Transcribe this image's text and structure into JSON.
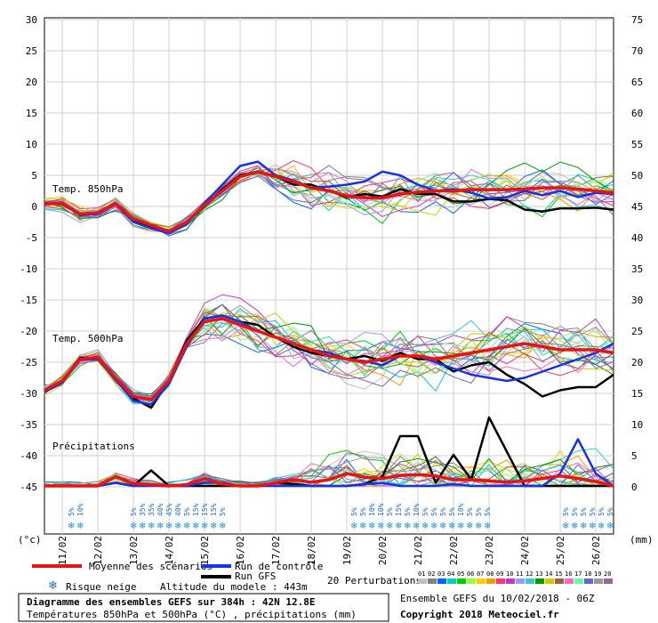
{
  "chart_data": {
    "type": "line",
    "title_line1": "Diagramme des ensembles GEFS sur 384h : 42N 12.8E",
    "title_line2": "Températures 850hPa et 500hPa (°C) , précipitations (mm)",
    "left_unit": "(°c)",
    "right_unit": "(mm)",
    "left_ticks": [
      30,
      25,
      20,
      15,
      10,
      5,
      0,
      -5,
      -10,
      -15,
      -20,
      -25,
      -30,
      -35,
      -40,
      -45
    ],
    "left_tick_values": [
      30,
      25,
      20,
      15,
      10,
      5,
      0,
      -5,
      -10,
      -15,
      -20,
      -25,
      -30,
      -35,
      -40,
      -45
    ],
    "right_ticks": [
      "75",
      "70",
      "65",
      "60",
      "55",
      "50",
      "45",
      "40",
      "35",
      "30",
      "25",
      "20",
      "15",
      "10",
      "5",
      "0"
    ],
    "x_labels": [
      "11/02",
      "12/02",
      "13/02",
      "14/02",
      "15/02",
      "16/02",
      "17/02",
      "18/02",
      "19/02",
      "20/02",
      "21/02",
      "22/02",
      "23/02",
      "24/02",
      "25/02",
      "26/02"
    ],
    "x_start_day": 10.5,
    "x_end_day": 26.5,
    "panel_labels": {
      "t850": "Temp. 850hPa",
      "t500": "Temp. 500hPa",
      "precip": "Précipitations"
    },
    "series": {
      "mean_t850": {
        "name": "Moyenne des scénarios",
        "color": "#ee1111",
        "x": [
          10.5,
          11,
          11.5,
          12,
          12.5,
          13,
          13.5,
          14,
          14.5,
          15,
          15.5,
          16,
          16.5,
          17,
          17.5,
          18,
          18.5,
          19,
          19.5,
          20,
          20.5,
          21,
          21.5,
          22,
          22.5,
          23,
          23.5,
          24,
          24.5,
          25,
          25.5,
          26,
          26.5
        ],
        "y": [
          0.5,
          0.5,
          -1.2,
          -1.0,
          0.5,
          -2.0,
          -3.0,
          -4.0,
          -2.5,
          0.2,
          2.5,
          4.8,
          5.6,
          4.8,
          4.0,
          3.0,
          2.5,
          1.7,
          1.4,
          1.4,
          2.0,
          2.3,
          2.5,
          2.5,
          2.7,
          2.7,
          2.7,
          2.8,
          3.0,
          3.0,
          2.8,
          2.5,
          2.2
        ]
      },
      "control_t850": {
        "name": "Run de contrôle",
        "color": "#1133ee",
        "x": [
          10.5,
          11,
          11.5,
          12,
          12.5,
          13,
          13.5,
          14,
          14.5,
          15,
          15.5,
          16,
          16.5,
          17,
          17.5,
          18,
          18.5,
          19,
          19.5,
          20,
          20.5,
          21,
          21.5,
          22,
          22.5,
          23,
          23.5,
          24,
          24.5,
          25,
          25.5,
          26,
          26.5
        ],
        "y": [
          0.3,
          0.6,
          -1.4,
          -1.2,
          0.4,
          -2.5,
          -3.5,
          -4.3,
          -2.8,
          0.5,
          3.5,
          6.5,
          7.2,
          5.0,
          4.2,
          3.0,
          3.2,
          3.5,
          4.0,
          5.6,
          5.0,
          3.5,
          2.5,
          2.8,
          2.2,
          1.3,
          1.5,
          2.5,
          1.8,
          2.5,
          1.5,
          2.2,
          2.0
        ]
      },
      "gfs_t850": {
        "name": "Run GFS",
        "color": "#000000",
        "x": [
          10.5,
          11,
          11.5,
          12,
          12.5,
          13,
          13.5,
          14,
          14.5,
          15,
          15.5,
          16,
          16.5,
          17,
          17.5,
          18,
          18.5,
          19,
          19.5,
          20,
          20.5,
          21,
          21.5,
          22,
          22.5,
          23,
          23.5,
          24,
          24.5,
          25,
          25.5,
          26,
          26.5
        ],
        "y": [
          0.5,
          0.4,
          -1.3,
          -1.0,
          0.6,
          -2.4,
          -3.2,
          -4.0,
          -2.6,
          0.0,
          2.8,
          5.0,
          5.5,
          4.8,
          3.5,
          3.5,
          2.5,
          1.5,
          2.0,
          1.6,
          2.8,
          2.0,
          2.0,
          0.8,
          0.8,
          1.2,
          1.0,
          -0.5,
          -0.8,
          -0.3,
          -0.3,
          -0.2,
          -0.5
        ]
      },
      "mean_t500": {
        "name": "Moyenne des scénarios",
        "color": "#ee1111",
        "x": [
          10.5,
          11,
          11.5,
          12,
          12.5,
          13,
          13.5,
          14,
          14.5,
          15,
          15.5,
          16,
          16.5,
          17,
          17.5,
          18,
          18.5,
          19,
          19.5,
          20,
          20.5,
          21,
          21.5,
          22,
          22.5,
          23,
          23.5,
          24,
          24.5,
          25,
          25.5,
          26,
          26.5
        ],
        "y": [
          -29.5,
          -28.0,
          -24.5,
          -24.2,
          -27.5,
          -30.5,
          -31.0,
          -28.0,
          -22.0,
          -18.5,
          -18.0,
          -19.0,
          -20.0,
          -21.0,
          -22.0,
          -23.0,
          -24.0,
          -24.5,
          -25.0,
          -24.5,
          -24.0,
          -24.0,
          -24.5,
          -24.0,
          -23.5,
          -23.0,
          -22.5,
          -22.0,
          -22.5,
          -23.0,
          -23.0,
          -23.0,
          -23.5
        ]
      },
      "control_t500": {
        "name": "Run de contrôle",
        "color": "#1133ee",
        "x": [
          10.5,
          11,
          11.5,
          12,
          12.5,
          13,
          13.5,
          14,
          14.5,
          15,
          15.5,
          16,
          16.5,
          17,
          17.5,
          18,
          18.5,
          19,
          19.5,
          20,
          20.5,
          21,
          21.5,
          22,
          22.5,
          23,
          23.5,
          24,
          24.5,
          25,
          25.5,
          26,
          26.5
        ],
        "y": [
          -29.8,
          -28.3,
          -24.6,
          -24.5,
          -27.8,
          -31.2,
          -31.8,
          -28.5,
          -22.5,
          -18.0,
          -17.5,
          -18.5,
          -20.0,
          -21.0,
          -22.0,
          -23.0,
          -23.5,
          -24.5,
          -24.8,
          -25.5,
          -24.0,
          -24.0,
          -25.0,
          -26.0,
          -27.0,
          -27.5,
          -28.0,
          -27.5,
          -26.5,
          -25.5,
          -24.5,
          -23.5,
          -22.0
        ]
      },
      "gfs_t500": {
        "name": "Run GFS",
        "color": "#000000",
        "x": [
          10.5,
          11,
          11.5,
          12,
          12.5,
          13,
          13.5,
          14,
          14.5,
          15,
          15.5,
          16,
          16.5,
          17,
          17.5,
          18,
          18.5,
          19,
          19.5,
          20,
          20.5,
          21,
          21.5,
          22,
          22.5,
          23,
          23.5,
          24,
          24.5,
          25,
          25.5,
          26,
          26.5
        ],
        "y": [
          -29.5,
          -28.0,
          -24.3,
          -24.3,
          -27.8,
          -30.8,
          -32.3,
          -28.0,
          -21.5,
          -18.0,
          -17.5,
          -18.5,
          -19.0,
          -21.0,
          -22.5,
          -23.5,
          -24.0,
          -24.5,
          -24.0,
          -24.8,
          -23.5,
          -24.5,
          -24.5,
          -26.5,
          -25.5,
          -25.0,
          -27.0,
          -28.5,
          -30.5,
          -29.5,
          -29.0,
          -29.0,
          -27.0
        ]
      },
      "mean_precip": {
        "name": "Moyenne des scénarios",
        "color": "#ee1111",
        "x": [
          10.5,
          11,
          11.5,
          12,
          12.5,
          13,
          13.5,
          14,
          14.5,
          15,
          15.5,
          16,
          16.5,
          17,
          17.5,
          18,
          18.5,
          19,
          19.5,
          20,
          20.5,
          21,
          21.5,
          22,
          22.5,
          23,
          23.5,
          24,
          24.5,
          25,
          25.5,
          26,
          26.5
        ],
        "y": [
          0,
          0,
          0,
          0,
          1.5,
          0.4,
          0.2,
          0,
          0.2,
          1.2,
          0.3,
          0,
          0,
          0.5,
          1.0,
          0.6,
          1.0,
          2.0,
          1.4,
          1.2,
          1.7,
          1.8,
          1.6,
          1.0,
          1.0,
          0.8,
          0.6,
          0.8,
          1.2,
          1.6,
          1.2,
          0.7,
          0
        ]
      },
      "control_precip": {
        "name": "Run de contrôle",
        "color": "#1133ee",
        "x": [
          10.5,
          11,
          11.5,
          12,
          12.5,
          13,
          13.5,
          14,
          14.5,
          15,
          15.5,
          16,
          16.5,
          17,
          17.5,
          18,
          18.5,
          19,
          19.5,
          20,
          20.5,
          21,
          21.5,
          22,
          22.5,
          23,
          23.5,
          24,
          24.5,
          25,
          25.5,
          26,
          26.5
        ],
        "y": [
          0,
          0,
          0,
          0,
          0.5,
          0,
          0,
          0,
          0,
          0.5,
          0.5,
          0,
          0,
          0,
          0,
          0,
          0,
          0,
          0.3,
          0.5,
          0,
          0,
          0,
          0.3,
          0,
          0,
          0,
          0,
          0,
          2.0,
          7.5,
          2.0,
          0
        ]
      },
      "gfs_precip": {
        "name": "Run GFS",
        "color": "#000000",
        "x": [
          10.5,
          11,
          11.5,
          12,
          12.5,
          13,
          13.5,
          14,
          14.5,
          15,
          15.5,
          16,
          16.5,
          17,
          17.5,
          18,
          18.5,
          19,
          19.5,
          20,
          20.5,
          21,
          21.5,
          22,
          22.5,
          23,
          23.5,
          24,
          24.5,
          25,
          25.5,
          26,
          26.5
        ],
        "y": [
          0,
          0,
          0,
          0,
          0.5,
          0,
          2.5,
          0,
          0,
          0,
          0,
          0,
          0,
          0.5,
          0.3,
          0,
          0,
          0,
          0.3,
          1.5,
          8.0,
          8.0,
          0.5,
          5.0,
          1.0,
          11.0,
          5.5,
          0,
          0,
          0,
          0,
          0,
          0
        ]
      }
    },
    "perturbation_colors": [
      "#c0c0c0",
      "#808080",
      "#0066ff",
      "#00cccc",
      "#00cc00",
      "#99ff33",
      "#ffcc00",
      "#ff9900",
      "#ff3366",
      "#cc33cc",
      "#9999ff",
      "#33cccc",
      "#009900",
      "#cccc00",
      "#996633",
      "#ff66cc",
      "#66ff99",
      "#6666cc",
      "#999999",
      "#996699"
    ],
    "perturbation_numbers": [
      "01",
      "02",
      "03",
      "04",
      "05",
      "06",
      "07",
      "08",
      "09",
      "10",
      "11",
      "12",
      "13",
      "14",
      "15",
      "16",
      "17",
      "18",
      "19",
      "20"
    ],
    "snow_risk_groups": [
      {
        "x_day": 11.25,
        "labels": [
          "5%",
          "10%"
        ]
      },
      {
        "x_day": 13.0,
        "labels": [
          "5%",
          "35%",
          "35%",
          "40%",
          "45%",
          "40%",
          "5%",
          "15%",
          "15%",
          "15%",
          "5%"
        ]
      },
      {
        "x_day": 19.2,
        "labels": [
          "5%",
          "5%",
          "10%",
          "10%",
          "5%",
          "15%",
          "5%",
          "10%",
          "5%",
          "5%",
          "5%",
          "5%",
          "10%",
          "5%",
          "5%",
          "5%"
        ]
      },
      {
        "x_day": 25.15,
        "labels": [
          "5%",
          "5%",
          "5%",
          "5%",
          "5%",
          "5%"
        ]
      }
    ],
    "legend": {
      "mean_label": "Moyenne des scénarios",
      "control_label": "Run de contrôle",
      "gfs_label": "Run GFS",
      "snow_label": "Risque neige",
      "altitude_label": "Altitude du modele : 443m",
      "perturbations_label": "20 Perturbations",
      "ensemble_label": "Ensemble GEFS du 10/02/2018 - 06Z",
      "copyright": "Copyright 2018 Meteociel.fr"
    }
  }
}
